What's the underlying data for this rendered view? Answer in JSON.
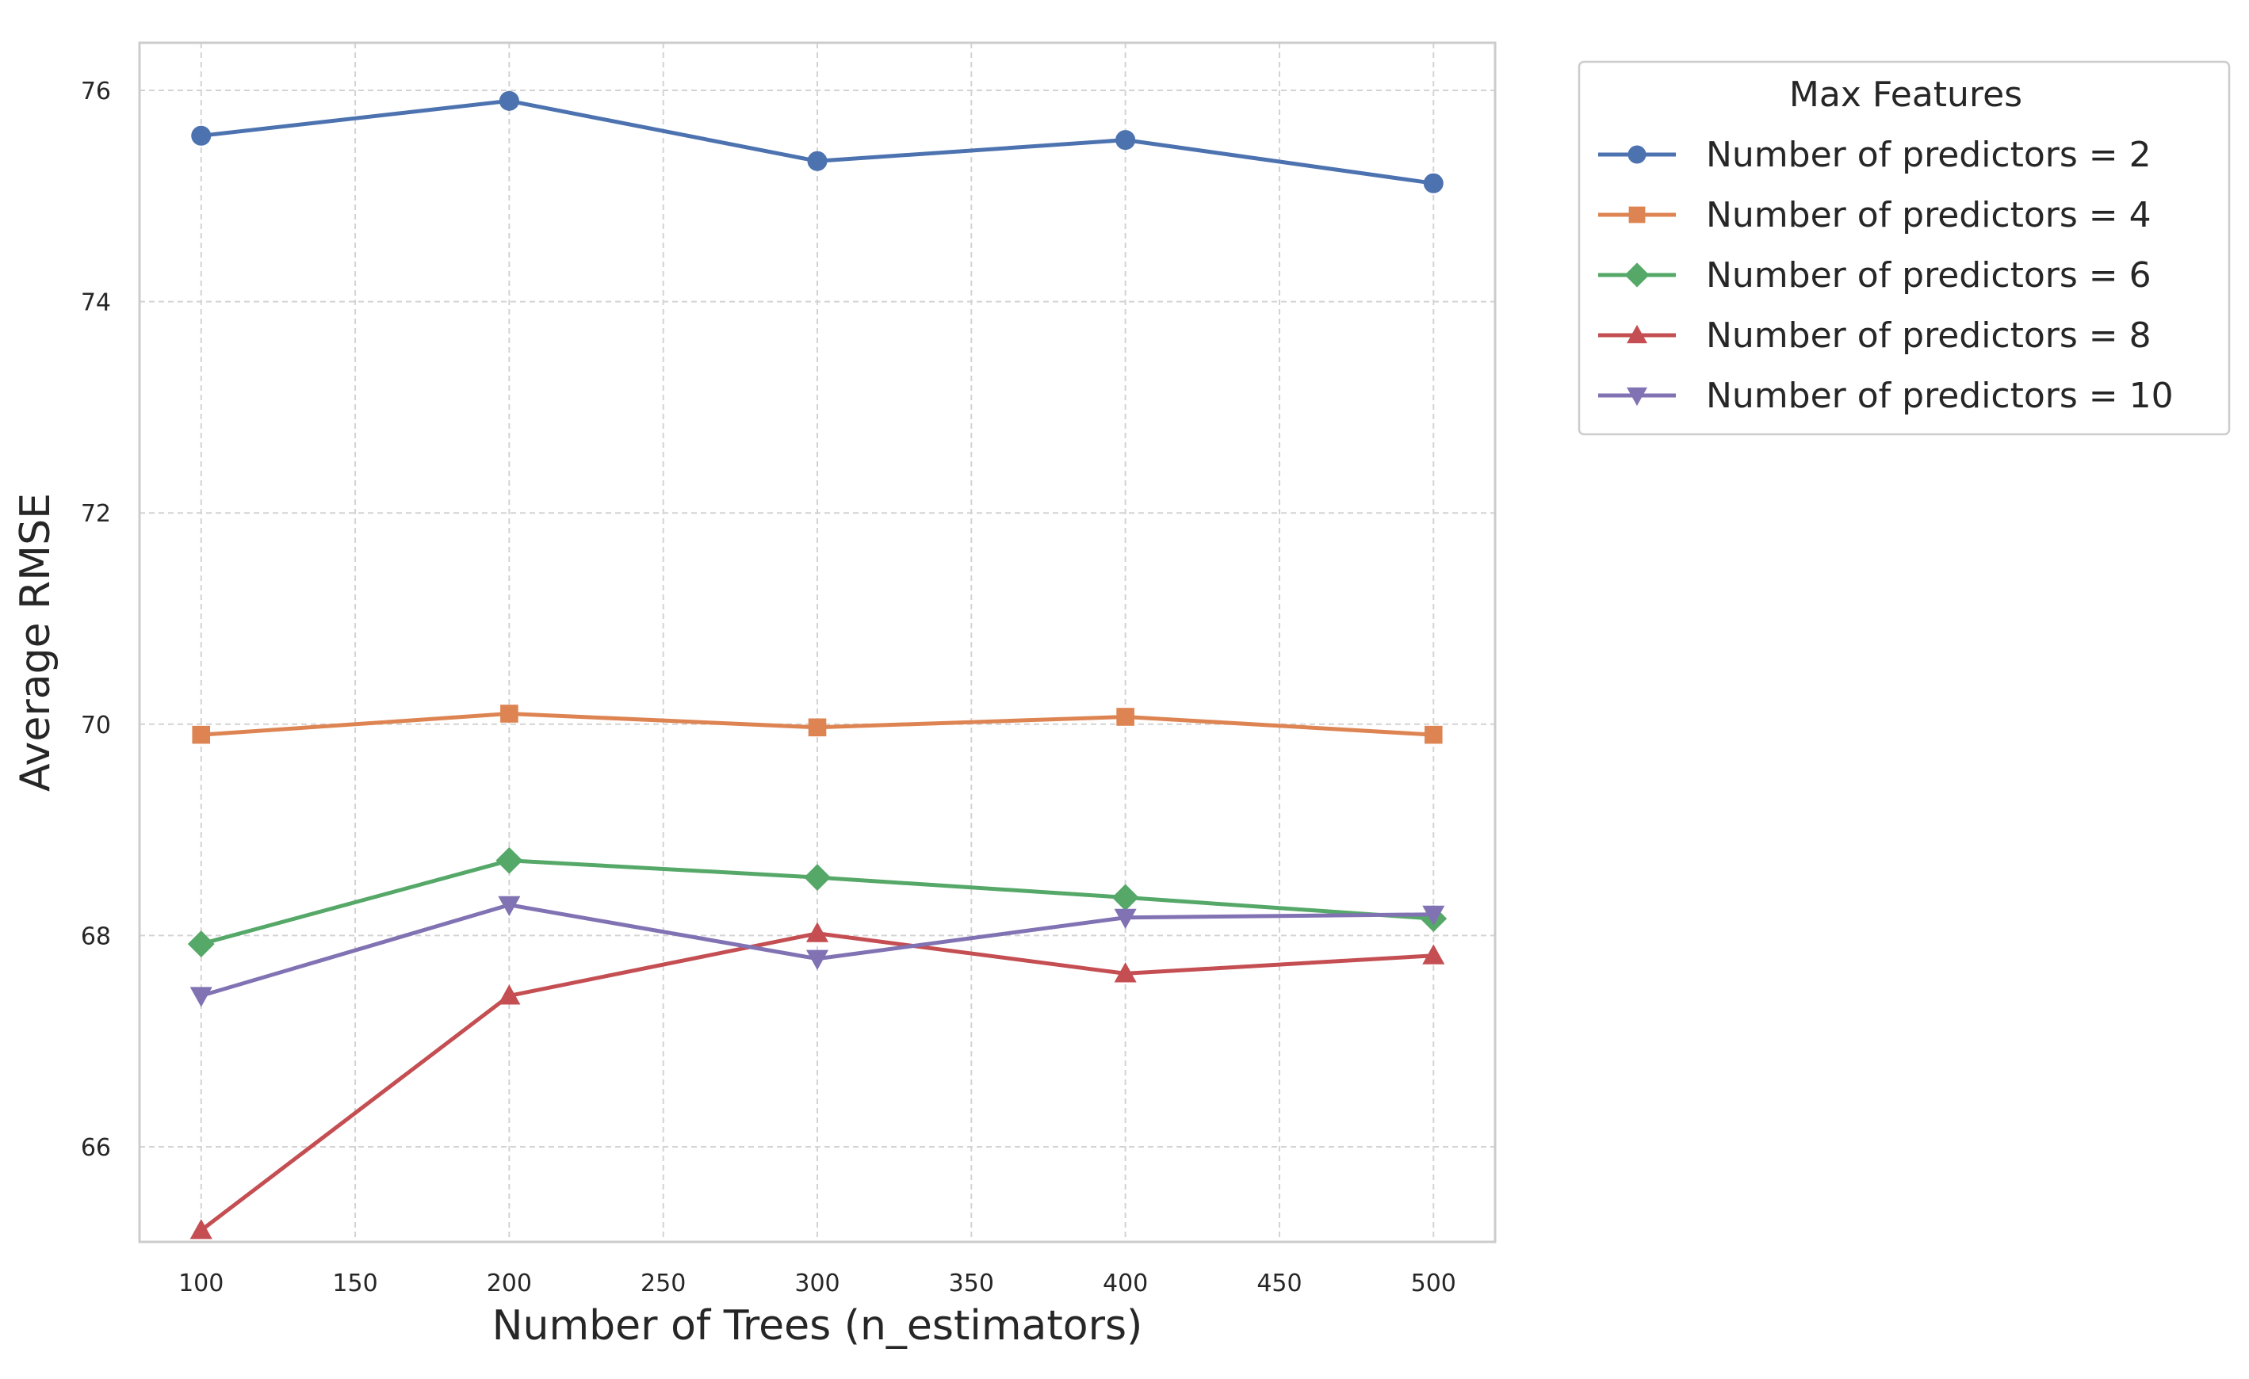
{
  "chart_data": {
    "type": "line",
    "title": "",
    "xlabel": "Number of Trees (n_estimators)",
    "ylabel": "Average RMSE",
    "x": [
      100,
      200,
      300,
      400,
      500
    ],
    "xlim": [
      80,
      520
    ],
    "ylim": [
      65.1,
      76.45
    ],
    "xticks": [
      100,
      150,
      200,
      250,
      300,
      350,
      400,
      450,
      500
    ],
    "yticks": [
      66,
      68,
      70,
      72,
      74,
      76
    ],
    "grid": true,
    "legend": {
      "title": "Max Features",
      "placement": "outside-top-right"
    },
    "series": [
      {
        "name": "Number of predictors = 2",
        "color": "#4c72b0",
        "marker": "circle",
        "values": [
          75.57,
          75.9,
          75.33,
          75.53,
          75.12
        ]
      },
      {
        "name": "Number of predictors = 4",
        "color": "#dd8452",
        "marker": "square",
        "values": [
          69.9,
          70.1,
          69.97,
          70.07,
          69.9
        ]
      },
      {
        "name": "Number of predictors = 6",
        "color": "#55a868",
        "marker": "diamond",
        "values": [
          67.92,
          68.71,
          68.55,
          68.36,
          68.16
        ]
      },
      {
        "name": "Number of predictors = 8",
        "color": "#c44e52",
        "marker": "triangle-up",
        "values": [
          65.21,
          67.43,
          68.02,
          67.64,
          67.81
        ]
      },
      {
        "name": "Number of predictors = 10",
        "color": "#8172b3",
        "marker": "triangle-down",
        "values": [
          67.43,
          68.29,
          67.78,
          68.17,
          68.2
        ]
      }
    ]
  }
}
